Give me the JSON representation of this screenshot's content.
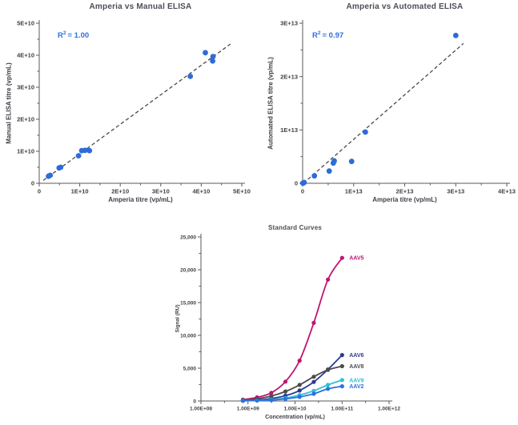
{
  "page": {
    "background": "#ffffff"
  },
  "chart_data": [
    {
      "type": "scatter",
      "title": "Amperia vs Manual ELISA",
      "xlabel": "Amperia titre (vp/mL)",
      "ylabel": "Manual ELISA titre (vp/mL)",
      "r2_prefix": "R",
      "r2_sup": "2",
      "r2_value": "= 1.00",
      "r2_color": "#2e6fe0",
      "point_color": "#2f6bd8",
      "trendline_color": "#4a4a4a",
      "xlim": [
        0,
        50000000000.0
      ],
      "ylim": [
        0,
        50000000000.0
      ],
      "xticks": [
        "0",
        "1E+10",
        "2E+10",
        "3E+10",
        "4E+10",
        "5E+10"
      ],
      "yticks": [
        "0",
        "1E+10",
        "2E+10",
        "3E+10",
        "4E+10",
        "5E+10"
      ],
      "grid": false,
      "points": [
        [
          2300000000.0,
          2200000000.0
        ],
        [
          2700000000.0,
          2500000000.0
        ],
        [
          4900000000.0,
          4800000000.0
        ],
        [
          5300000000.0,
          5000000000.0
        ],
        [
          9700000000.0,
          8600000000.0
        ],
        [
          10500000000.0,
          10200000000.0
        ],
        [
          11300000000.0,
          10300000000.0
        ],
        [
          12400000000.0,
          10200000000.0
        ],
        [
          37300000000.0,
          33400000000.0
        ],
        [
          41000000000.0,
          40800000000.0
        ],
        [
          42900000000.0,
          39600000000.0
        ],
        [
          42800000000.0,
          38200000000.0
        ]
      ],
      "trendline": {
        "style": "dashed",
        "x1": 1000000000.0,
        "y1": 900000000.0,
        "x2": 47200000000.0,
        "y2": 43500000000.0
      }
    },
    {
      "type": "scatter",
      "title": "Amperia vs Automated ELISA",
      "xlabel": "Amperia titre (vp/mL)",
      "ylabel": "Automated ELISA titre (vp/mL)",
      "r2_prefix": "R",
      "r2_sup": "2",
      "r2_value": "= 0.97",
      "r2_color": "#2e6fe0",
      "point_color": "#2f6bd8",
      "trendline_color": "#4a4a4a",
      "xlim": [
        0,
        40000000000000.0
      ],
      "ylim": [
        0,
        30000000000000.0
      ],
      "xticks": [
        "0",
        "1E+13",
        "2E+13",
        "3E+13",
        "4E+13"
      ],
      "yticks": [
        "0",
        "1E+13",
        "2E+13",
        "3E+13"
      ],
      "grid": false,
      "points": [
        [
          50000000000.0,
          30000000000.0
        ],
        [
          150000000000.0,
          80000000000.0
        ],
        [
          300000000000.0,
          150000000000.0
        ],
        [
          2300000000000.0,
          1400000000000.0
        ],
        [
          5200000000000.0,
          2300000000000.0
        ],
        [
          6000000000000.0,
          3800000000000.0
        ],
        [
          6200000000000.0,
          4200000000000.0
        ],
        [
          9600000000000.0,
          4100000000000.0
        ],
        [
          12300000000000.0,
          9600000000000.0
        ],
        [
          30000000000000.0,
          27700000000000.0
        ]
      ],
      "trendline": {
        "style": "dashed",
        "x1": 150000000000.0,
        "y1": 0,
        "x2": 31500000000000.0,
        "y2": 26200000000000.0
      }
    },
    {
      "type": "line",
      "title": "Standard Curves",
      "xlabel": "Concentration (vp/mL)",
      "ylabel": "Signal (RU)",
      "x_scale": "log",
      "xlim": [
        100000000.0,
        1000000000000.0
      ],
      "ylim": [
        0,
        25000
      ],
      "xticks": [
        "1.00E+08",
        "1.00E+09",
        "1.00E+10",
        "1.00E+11",
        "1.00E+12"
      ],
      "yticks": [
        "0",
        "5,000",
        "10,000",
        "15,000",
        "20,000",
        "25,000"
      ],
      "grid": false,
      "legend_position": "right-of-last-point",
      "x": [
        780000000.0,
        1560000000.0,
        3130000000.0,
        6250000000.0,
        12500000000.0,
        25000000000.0,
        50000000000.0,
        100000000000.0
      ],
      "series": [
        {
          "name": "AAV5",
          "color": "#c1156f",
          "values": [
            200,
            550,
            1250,
            2950,
            6150,
            11900,
            18500,
            21800
          ]
        },
        {
          "name": "AAV6",
          "color": "#2c3a94",
          "values": [
            60,
            160,
            380,
            800,
            1600,
            2900,
            4800,
            7000
          ]
        },
        {
          "name": "AAV8",
          "color": "#4c4c4c",
          "values": [
            120,
            320,
            750,
            1450,
            2450,
            3700,
            4750,
            5300
          ]
        },
        {
          "name": "AAV9",
          "color": "#31bfd6",
          "values": [
            40,
            90,
            200,
            450,
            900,
            1550,
            2450,
            3200
          ]
        },
        {
          "name": "AAV2",
          "color": "#2a72e0",
          "values": [
            30,
            70,
            140,
            320,
            620,
            1100,
            1850,
            2250
          ]
        }
      ]
    }
  ]
}
